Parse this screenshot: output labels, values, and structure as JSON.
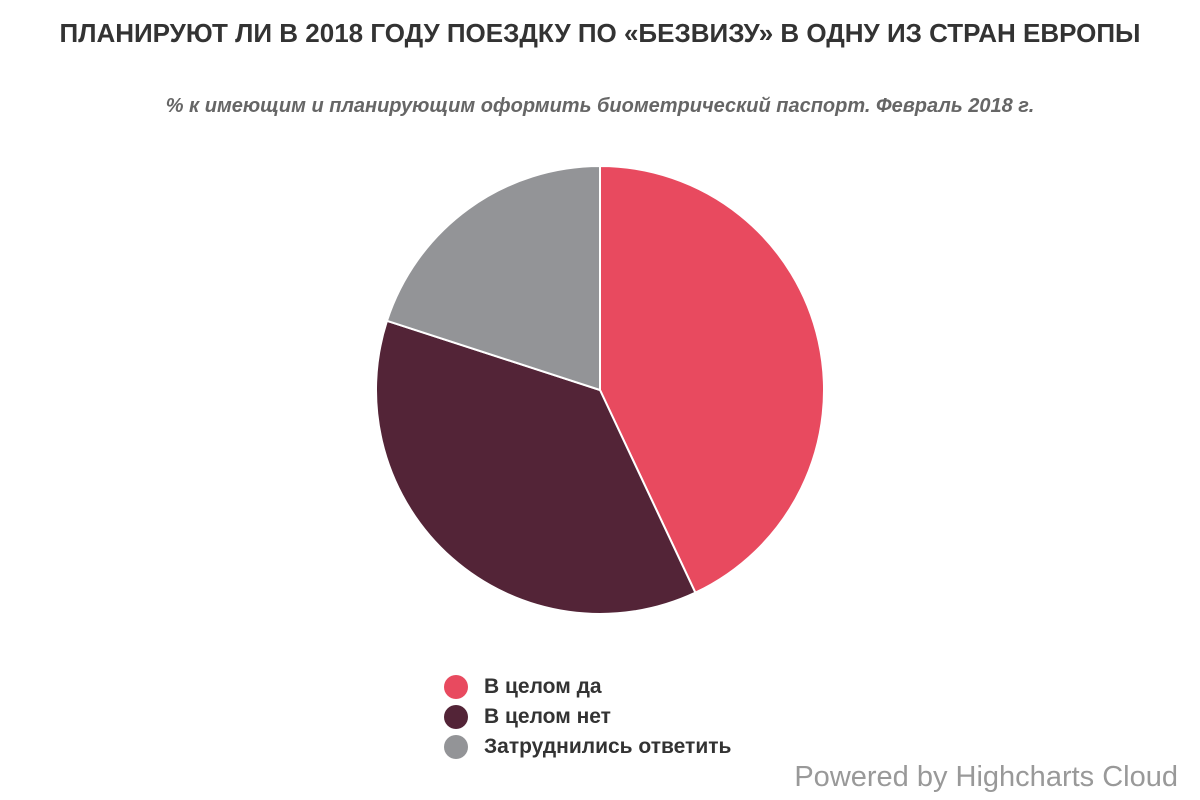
{
  "chart_data": {
    "type": "pie",
    "title": "ПЛАНИРУЮТ ЛИ В 2018 ГОДУ ПОЕЗДКУ ПО «БЕЗВИЗУ» В ОДНУ ИЗ СТРАН ЕВРОПЫ",
    "subtitle": "% к имеющим и планирующим оформить биометрический паспорт. Февраль 2018 г.",
    "legend_position": "bottom-center",
    "series": [
      {
        "name": "В целом да",
        "value": 43,
        "color": "#e84a5f"
      },
      {
        "name": "В целом нет",
        "value": 37,
        "color": "#532437"
      },
      {
        "name": "Затруднились ответить",
        "value": 20,
        "color": "#939497"
      }
    ]
  },
  "credits": "Powered by Highcharts Cloud"
}
